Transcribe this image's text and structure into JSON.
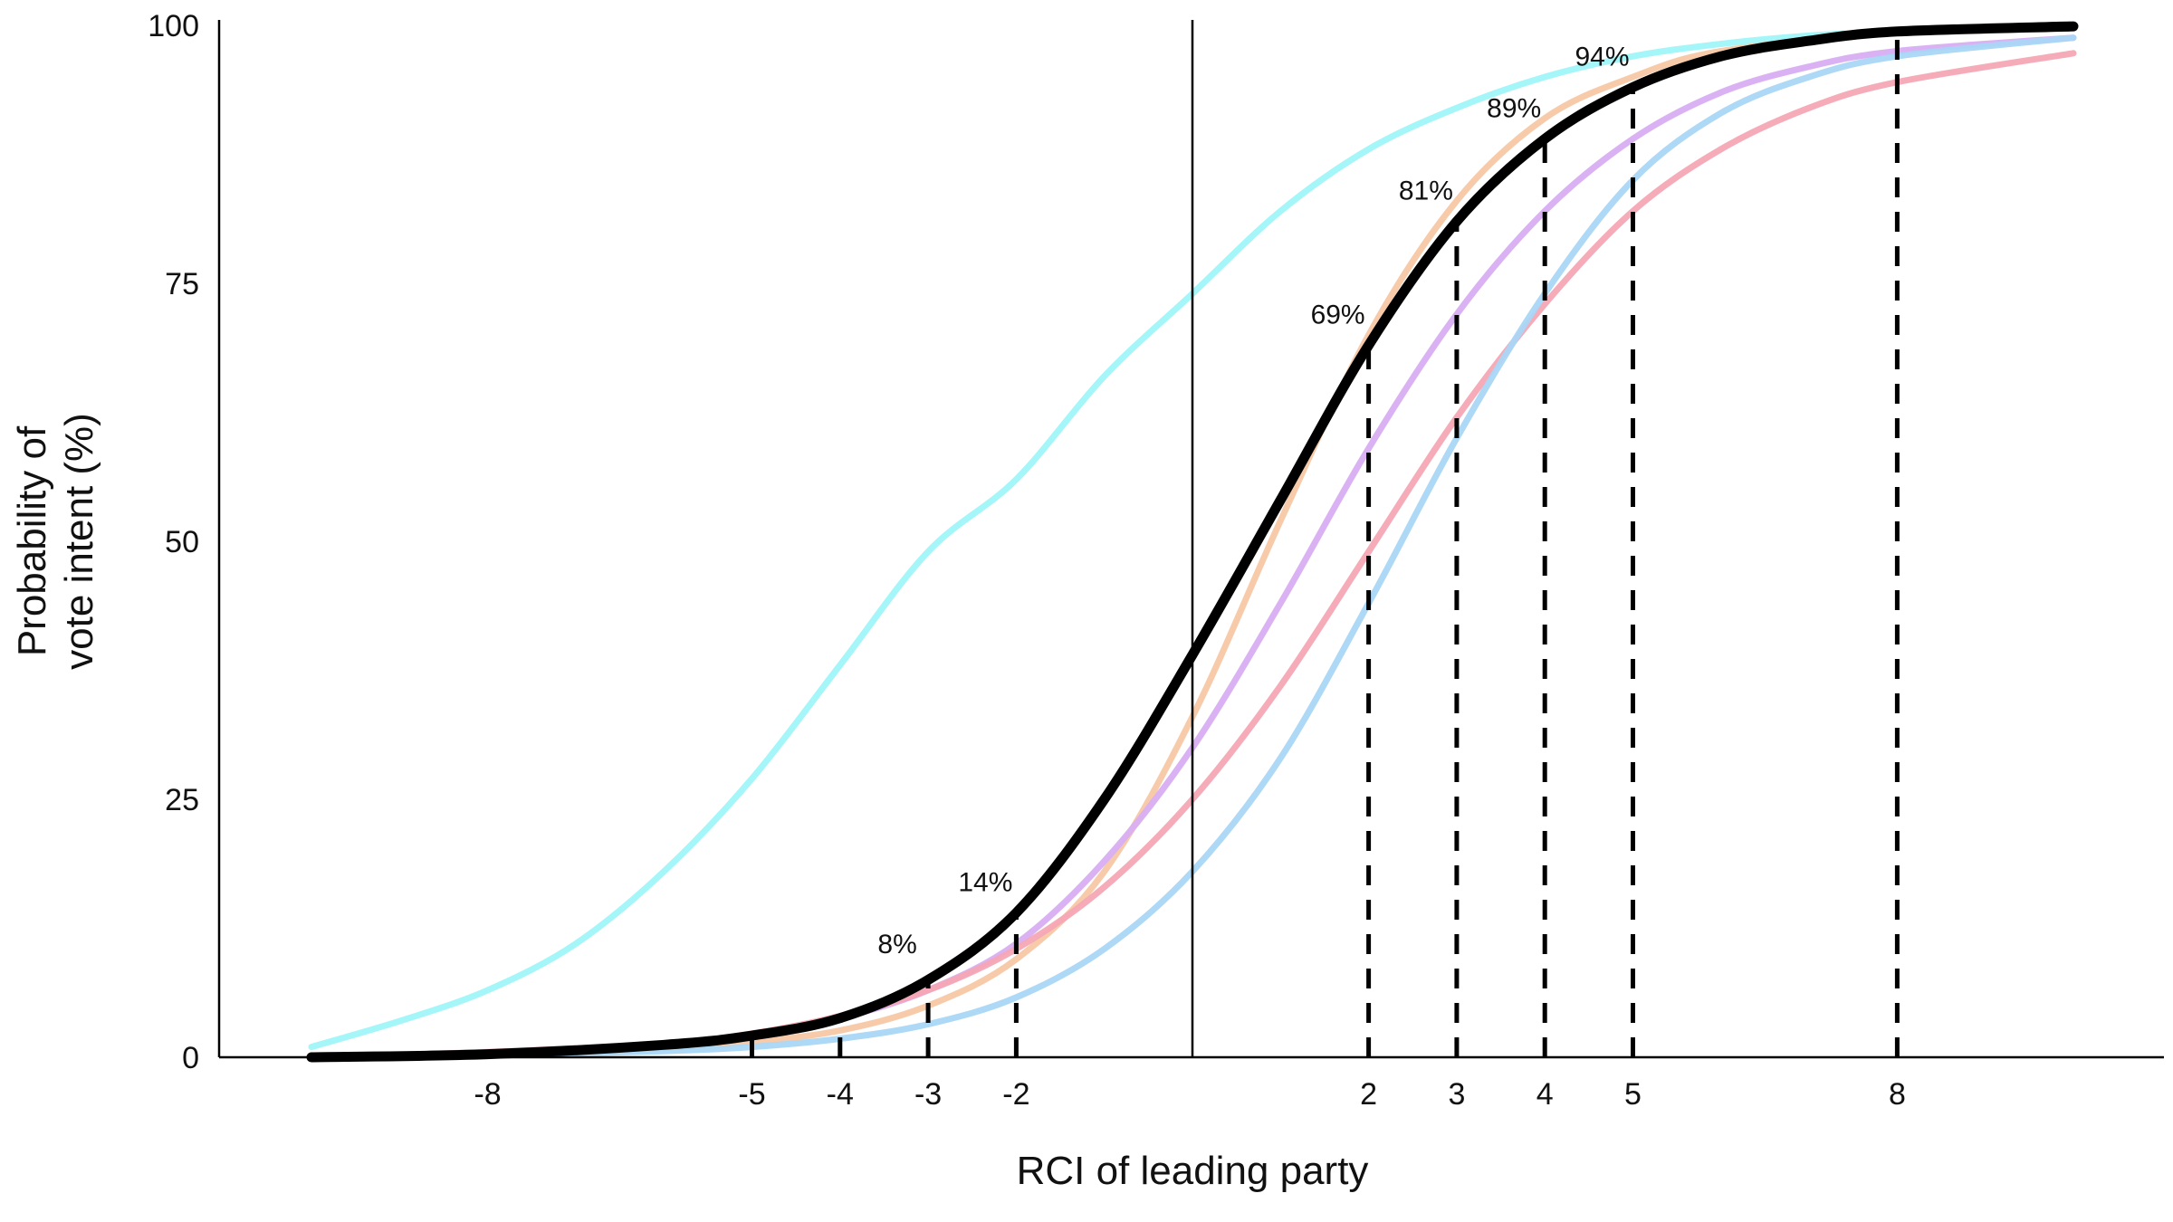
{
  "chart_data": {
    "type": "line",
    "title": "",
    "xlabel": "RCI of leading party",
    "ylabel_lines": [
      "Probability of",
      "vote intent (%)"
    ],
    "xlim": [
      -10,
      11
    ],
    "ylim": [
      0,
      100
    ],
    "x_ticks": [
      -8,
      -5,
      -4,
      -3,
      -2,
      2,
      3,
      4,
      5,
      8
    ],
    "y_ticks": [
      0,
      25,
      50,
      75,
      100
    ],
    "grid": false,
    "legend": "none",
    "reference_line_x": 0,
    "x_range": [
      -10,
      10
    ],
    "series": [
      {
        "color": "#9FF5F9",
        "values": [
          [
            -10,
            1
          ],
          [
            -9,
            3.5
          ],
          [
            -8,
            6.5
          ],
          [
            -7,
            11
          ],
          [
            -6,
            18
          ],
          [
            -5,
            27
          ],
          [
            -4,
            38
          ],
          [
            -3,
            49
          ],
          [
            -2,
            56
          ],
          [
            -1,
            66
          ],
          [
            0,
            74
          ],
          [
            1,
            82
          ],
          [
            2,
            88
          ],
          [
            3,
            92
          ],
          [
            4,
            95
          ],
          [
            5,
            97
          ],
          [
            6,
            98.2
          ],
          [
            7,
            99
          ],
          [
            8,
            99.4
          ],
          [
            9,
            99.7
          ],
          [
            10,
            99.9
          ]
        ]
      },
      {
        "color": "#F7C8A5",
        "values": [
          [
            -10,
            0
          ],
          [
            -8,
            0.3
          ],
          [
            -6,
            0.9
          ],
          [
            -5,
            1.5
          ],
          [
            -4,
            2.6
          ],
          [
            -3,
            5
          ],
          [
            -2,
            9.5
          ],
          [
            -1,
            18
          ],
          [
            0,
            33
          ],
          [
            1,
            52
          ],
          [
            2,
            70
          ],
          [
            3,
            83
          ],
          [
            4,
            91
          ],
          [
            5,
            95
          ],
          [
            6,
            97.5
          ],
          [
            8,
            99.3
          ],
          [
            10,
            99.8
          ]
        ]
      },
      {
        "color": "#D8AEF2",
        "values": [
          [
            -10,
            0
          ],
          [
            -8,
            0.4
          ],
          [
            -6,
            1.2
          ],
          [
            -5,
            2.2
          ],
          [
            -4,
            3.8
          ],
          [
            -3,
            6.5
          ],
          [
            -2,
            11
          ],
          [
            -1,
            19
          ],
          [
            0,
            30
          ],
          [
            1,
            44
          ],
          [
            2,
            59
          ],
          [
            3,
            72
          ],
          [
            4,
            82
          ],
          [
            5,
            89
          ],
          [
            6,
            93.5
          ],
          [
            7,
            96
          ],
          [
            8,
            97.5
          ],
          [
            10,
            98.8
          ]
        ]
      },
      {
        "color": "#F6A6B4",
        "values": [
          [
            -10,
            0
          ],
          [
            -8,
            0.5
          ],
          [
            -6,
            1.3
          ],
          [
            -5,
            2.3
          ],
          [
            -4,
            4
          ],
          [
            -3,
            6.5
          ],
          [
            -2,
            10.5
          ],
          [
            -1,
            16.5
          ],
          [
            0,
            25
          ],
          [
            1,
            36
          ],
          [
            2,
            49
          ],
          [
            3,
            62
          ],
          [
            4,
            73
          ],
          [
            5,
            82
          ],
          [
            6,
            88
          ],
          [
            7,
            92
          ],
          [
            8,
            94.5
          ],
          [
            10,
            97.3
          ]
        ]
      },
      {
        "color": "#A9D6F5",
        "values": [
          [
            -10,
            0
          ],
          [
            -8,
            0.2
          ],
          [
            -6,
            0.6
          ],
          [
            -5,
            1
          ],
          [
            -4,
            1.8
          ],
          [
            -3,
            3.2
          ],
          [
            -2,
            5.8
          ],
          [
            -1,
            10.5
          ],
          [
            0,
            18
          ],
          [
            1,
            29
          ],
          [
            2,
            44
          ],
          [
            3,
            60
          ],
          [
            4,
            74
          ],
          [
            5,
            85
          ],
          [
            6,
            91.5
          ],
          [
            7,
            95
          ],
          [
            8,
            97
          ],
          [
            10,
            98.8
          ]
        ]
      },
      {
        "color": "#000000",
        "values": [
          [
            -10,
            0
          ],
          [
            -8,
            0.3
          ],
          [
            -6,
            1.2
          ],
          [
            -5,
            2.1
          ],
          [
            -4,
            3.8
          ],
          [
            -3,
            7.5
          ],
          [
            -2,
            14
          ],
          [
            -1,
            25
          ],
          [
            0,
            39
          ],
          [
            1,
            54
          ],
          [
            2,
            69
          ],
          [
            3,
            81
          ],
          [
            4,
            89
          ],
          [
            5,
            94
          ],
          [
            6,
            97
          ],
          [
            7,
            98.5
          ],
          [
            8,
            99.4
          ],
          [
            10,
            99.9
          ]
        ]
      }
    ],
    "guide_lines_x": [
      -5,
      -4,
      -3,
      -2,
      2,
      3,
      4,
      5,
      8
    ],
    "annotations": [
      {
        "x": -3,
        "y": 8,
        "label": "8%"
      },
      {
        "x": -2,
        "y": 14,
        "label": "14%"
      },
      {
        "x": 2,
        "y": 69,
        "label": "69%"
      },
      {
        "x": 3,
        "y": 81,
        "label": "81%"
      },
      {
        "x": 4,
        "y": 89,
        "label": "89%"
      },
      {
        "x": 5,
        "y": 94,
        "label": "94%"
      }
    ]
  }
}
